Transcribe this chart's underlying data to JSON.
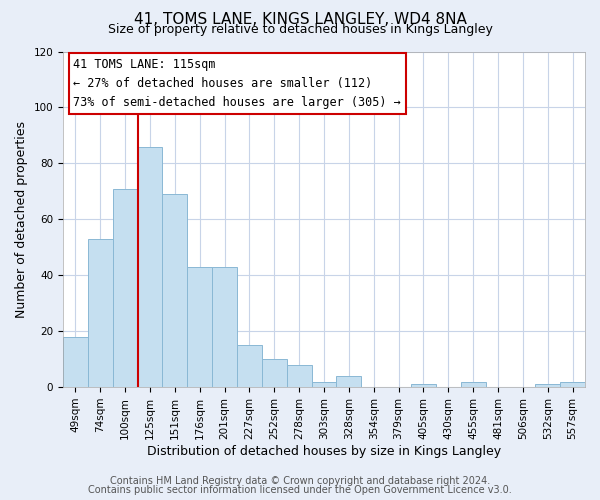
{
  "title": "41, TOMS LANE, KINGS LANGLEY, WD4 8NA",
  "subtitle": "Size of property relative to detached houses in Kings Langley",
  "xlabel": "Distribution of detached houses by size in Kings Langley",
  "ylabel": "Number of detached properties",
  "bar_labels": [
    "49sqm",
    "74sqm",
    "100sqm",
    "125sqm",
    "151sqm",
    "176sqm",
    "201sqm",
    "227sqm",
    "252sqm",
    "278sqm",
    "303sqm",
    "328sqm",
    "354sqm",
    "379sqm",
    "405sqm",
    "430sqm",
    "455sqm",
    "481sqm",
    "506sqm",
    "532sqm",
    "557sqm"
  ],
  "bar_values": [
    18,
    53,
    71,
    86,
    69,
    43,
    43,
    15,
    10,
    8,
    2,
    4,
    0,
    0,
    1,
    0,
    2,
    0,
    0,
    1,
    2
  ],
  "bar_color": "#c5dff0",
  "bar_edge_color": "#8ab8d4",
  "vline_color": "#cc0000",
  "annotation_box_text": "41 TOMS LANE: 115sqm\n← 27% of detached houses are smaller (112)\n73% of semi-detached houses are larger (305) →",
  "ylim": [
    0,
    120
  ],
  "yticks": [
    0,
    20,
    40,
    60,
    80,
    100,
    120
  ],
  "footer_line1": "Contains HM Land Registry data © Crown copyright and database right 2024.",
  "footer_line2": "Contains public sector information licensed under the Open Government Licence v3.0.",
  "background_color": "#e8eef8",
  "plot_background_color": "#ffffff",
  "grid_color": "#c8d4e8",
  "title_fontsize": 11,
  "subtitle_fontsize": 9,
  "label_fontsize": 9,
  "tick_fontsize": 7.5,
  "footer_fontsize": 7
}
